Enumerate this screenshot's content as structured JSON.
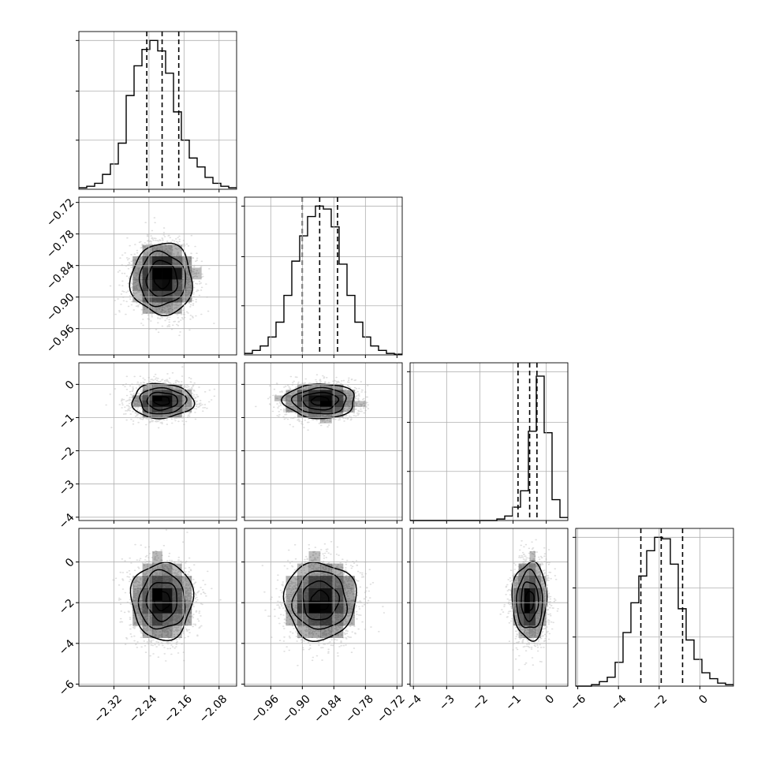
{
  "chart_data": {
    "type": "corner",
    "grid": true,
    "dimensions": 4,
    "ranges": [
      [
        -2.4,
        -2.04
      ],
      [
        -1.01,
        -0.71
      ],
      [
        -4.1,
        0.65
      ],
      [
        -6.1,
        1.65
      ]
    ],
    "tick_values": [
      [
        -2.32,
        -2.24,
        -2.16,
        -2.08
      ],
      [
        -0.96,
        -0.9,
        -0.84,
        -0.78,
        -0.72
      ],
      [
        -4,
        -3,
        -2,
        -1,
        0
      ],
      [
        -6,
        -4,
        -2,
        0
      ]
    ],
    "tick_labels": [
      [
        "−2.32",
        "−2.24",
        "−2.16",
        "−2.08"
      ],
      [
        "−0.96",
        "−0.90",
        "−0.84",
        "−0.78",
        "−0.72"
      ],
      [
        "−4",
        "−3",
        "−2",
        "−1",
        "0"
      ],
      [
        "−6",
        "−4",
        "−2",
        "0"
      ]
    ],
    "quantiles": [
      [
        -2.245,
        -2.21,
        -2.172
      ],
      [
        -0.9,
        -0.867,
        -0.833
      ],
      [
        -0.85,
        -0.5,
        -0.28
      ],
      [
        -2.9,
        -1.9,
        -0.85
      ]
    ],
    "histograms": [
      [
        0.01,
        0.02,
        0.04,
        0.1,
        0.17,
        0.31,
        0.63,
        0.83,
        0.94,
        1.0,
        0.93,
        0.78,
        0.52,
        0.33,
        0.21,
        0.15,
        0.08,
        0.04,
        0.02,
        0.01
      ],
      [
        0.01,
        0.03,
        0.06,
        0.12,
        0.22,
        0.4,
        0.63,
        0.8,
        0.93,
        1.0,
        0.98,
        0.86,
        0.61,
        0.4,
        0.22,
        0.12,
        0.06,
        0.03,
        0.01,
        0.005
      ],
      [
        0,
        0,
        0,
        0,
        0,
        0,
        0,
        0,
        0,
        0,
        0,
        0.01,
        0.03,
        0.09,
        0.2,
        0.6,
        0.97,
        0.59,
        0.14,
        0.02
      ],
      [
        0,
        0,
        0.01,
        0.03,
        0.06,
        0.16,
        0.36,
        0.56,
        0.74,
        0.91,
        1.0,
        0.99,
        0.82,
        0.52,
        0.31,
        0.18,
        0.09,
        0.05,
        0.02,
        0.01
      ]
    ],
    "centers": [
      -2.21,
      -0.866,
      -0.5,
      -1.9
    ],
    "spreads": [
      0.035,
      0.034,
      0.26,
      0.95
    ],
    "correlations": [
      [
        1,
        0,
        0,
        0
      ],
      [
        0,
        1,
        0,
        0
      ],
      [
        0,
        0,
        1,
        0
      ],
      [
        0,
        0,
        0,
        1
      ]
    ],
    "scatter_points_per_panel": 2400,
    "colors": {
      "line": "#000000",
      "grid": "#b0b0b0",
      "points": "#000000",
      "density": "#000000"
    }
  }
}
